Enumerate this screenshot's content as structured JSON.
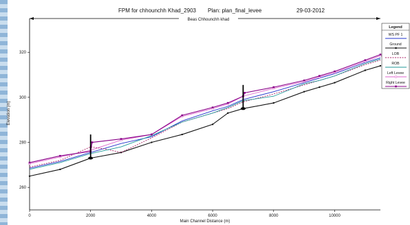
{
  "chart_data": {
    "type": "line",
    "title": {
      "left": "FPM for chhounchh Khad_2903",
      "middle": "Plan: plan_final_levee",
      "right": "29-03-2012"
    },
    "reach_label": "Beas Chhounchh khad",
    "xlabel": "Main Channel Distance (m)",
    "ylabel": "Elevation (m)",
    "xlim": [
      0,
      11500
    ],
    "ylim": [
      250,
      335
    ],
    "x_ticks": [
      0,
      2000,
      4000,
      6000,
      8000,
      10000
    ],
    "y_ticks": [
      260,
      280,
      300,
      320
    ],
    "legend_title": "Legend",
    "legend_position": "right",
    "series": [
      {
        "name": "WS  PF 1",
        "color": "#2233cc",
        "style": "solid",
        "x": [
          0,
          1000,
          2000,
          3000,
          4000,
          5000,
          6000,
          6500,
          7000,
          8000,
          9000,
          9500,
          10000,
          11000,
          11500
        ],
        "y": [
          268.5,
          271.5,
          275.5,
          279.5,
          282.5,
          289.5,
          294,
          296,
          299,
          302.5,
          306.5,
          308.5,
          310.5,
          315.5,
          317.5
        ]
      },
      {
        "name": "Ground",
        "color": "#111111",
        "style": "solid",
        "x": [
          0,
          1000,
          2000,
          3000,
          4000,
          5000,
          6000,
          6500,
          7000,
          8000,
          9000,
          9500,
          10000,
          11000,
          11500
        ],
        "y": [
          265,
          268,
          273,
          275.5,
          280,
          283.5,
          288,
          293,
          295,
          297.5,
          302.5,
          304.5,
          306.5,
          312,
          314
        ]
      },
      {
        "name": "LOB",
        "color": "#aa2266",
        "style": "dashed",
        "x": [
          0,
          1000,
          2000,
          2500,
          3000,
          4000,
          5000,
          6000,
          6500,
          7000,
          8000,
          9000,
          9500,
          10000,
          11000,
          11500
        ],
        "y": [
          269,
          272,
          278,
          277,
          275.5,
          282,
          289,
          293,
          295,
          298,
          301.5,
          305.5,
          307.5,
          309.5,
          314.5,
          316.5
        ]
      },
      {
        "name": "ROB",
        "color": "#22999a",
        "style": "solid",
        "x": [
          0,
          1000,
          2000,
          3000,
          4000,
          5000,
          6000,
          6500,
          7000,
          8000,
          9000,
          9500,
          10000,
          11000,
          11500
        ],
        "y": [
          268,
          271,
          275,
          278,
          283,
          289,
          293,
          295.5,
          298.5,
          300.5,
          306,
          307.5,
          309.5,
          315,
          317
        ]
      },
      {
        "name": "Left Levee",
        "color": "#dd66cc",
        "style": "solid",
        "x": [
          0,
          1000,
          2000,
          3000,
          4000,
          5000,
          6000,
          6500,
          7000,
          8000,
          9000,
          9500,
          10000,
          11000,
          11500
        ],
        "y": [
          270.5,
          273.5,
          276.5,
          281,
          283.5,
          291.5,
          295,
          297,
          300.5,
          304,
          307,
          309,
          311,
          316,
          318.5
        ]
      },
      {
        "name": "Right Levee",
        "color": "#880088",
        "style": "solid",
        "x": [
          0,
          1000,
          2000,
          2050,
          3000,
          4000,
          5000,
          6000,
          6500,
          7000,
          7050,
          8000,
          9000,
          9500,
          10000,
          11000,
          11500
        ],
        "y": [
          271,
          274,
          276,
          280,
          281.5,
          283.5,
          292,
          295.5,
          297.5,
          300.5,
          302,
          304.5,
          307.5,
          309.5,
          311.5,
          316.5,
          319
        ]
      }
    ],
    "bridges": [
      {
        "x": 2000,
        "top": 283.5,
        "bottom": 273
      },
      {
        "x": 7000,
        "top": 305.5,
        "bottom": 295
      }
    ]
  }
}
